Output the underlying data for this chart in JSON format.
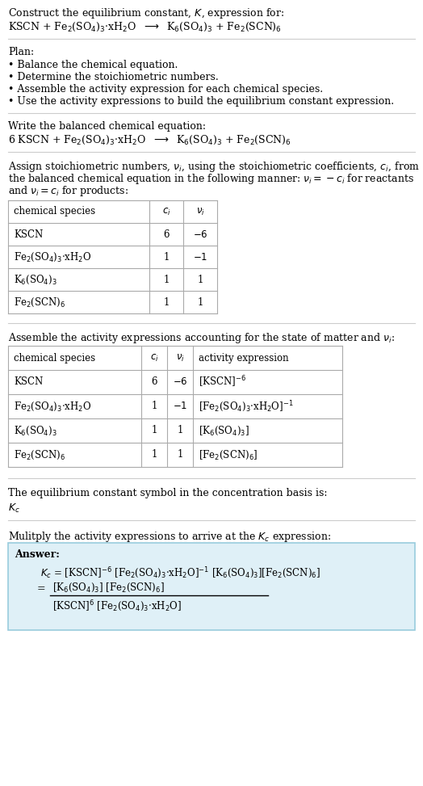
{
  "bg_color": "#ffffff",
  "text_color": "#000000",
  "table_border": "#aaaaaa",
  "answer_bg": "#dff0f7",
  "answer_border": "#99ccdd",
  "section1_title": "Construct the equilibrium constant, $K$, expression for:",
  "section1_eq": "KSCN + Fe$_2$(SO$_4$)$_3$·xH$_2$O  $\\longrightarrow$  K$_6$(SO$_4$)$_3$ + Fe$_2$(SCN)$_6$",
  "plan_title": "Plan:",
  "plan_bullets": [
    "• Balance the chemical equation.",
    "• Determine the stoichiometric numbers.",
    "• Assemble the activity expression for each chemical species.",
    "• Use the activity expressions to build the equilibrium constant expression."
  ],
  "balanced_title": "Write the balanced chemical equation:",
  "balanced_eq": "6 KSCN + Fe$_2$(SO$_4$)$_3$·xH$_2$O  $\\longrightarrow$  K$_6$(SO$_4$)$_3$ + Fe$_2$(SCN)$_6$",
  "stoich_intro_lines": [
    "Assign stoichiometric numbers, $\\nu_i$, using the stoichiometric coefficients, $c_i$, from",
    "the balanced chemical equation in the following manner: $\\nu_i = -c_i$ for reactants",
    "and $\\nu_i = c_i$ for products:"
  ],
  "table1_headers": [
    "chemical species",
    "$c_i$",
    "$\\nu_i$"
  ],
  "table1_rows": [
    [
      "KSCN",
      "6",
      "$-6$"
    ],
    [
      "Fe$_2$(SO$_4$)$_3$·xH$_2$O",
      "1",
      "$-1$"
    ],
    [
      "K$_6$(SO$_4$)$_3$",
      "1",
      "1"
    ],
    [
      "Fe$_2$(SCN)$_6$",
      "1",
      "1"
    ]
  ],
  "activity_intro": "Assemble the activity expressions accounting for the state of matter and $\\nu_i$:",
  "table2_headers": [
    "chemical species",
    "$c_i$",
    "$\\nu_i$",
    "activity expression"
  ],
  "table2_rows": [
    [
      "KSCN",
      "6",
      "$-6$",
      "[KSCN]$^{-6}$"
    ],
    [
      "Fe$_2$(SO$_4$)$_3$·xH$_2$O",
      "1",
      "$-1$",
      "[Fe$_2$(SO$_4$)$_3$·xH$_2$O]$^{-1}$"
    ],
    [
      "K$_6$(SO$_4$)$_3$",
      "1",
      "1",
      "[K$_6$(SO$_4$)$_3$]"
    ],
    [
      "Fe$_2$(SCN)$_6$",
      "1",
      "1",
      "[Fe$_2$(SCN)$_6$]"
    ]
  ],
  "kc_intro": "The equilibrium constant symbol in the concentration basis is:",
  "kc_symbol": "$K_c$",
  "multiply_intro": "Mulitply the activity expressions to arrive at the $K_c$ expression:",
  "answer_label": "Answer:",
  "answer_line1": "$K_c$ = [KSCN]$^{-6}$ [Fe$_2$(SO$_4$)$_3$·xH$_2$O]$^{-1}$ [K$_6$(SO$_4$)$_3$][Fe$_2$(SCN)$_6$]",
  "answer_eq_num": "[K$_6$(SO$_4$)$_3$] [Fe$_2$(SCN)$_6$]",
  "answer_eq_den": "[KSCN]$^6$ [Fe$_2$(SO$_4$)$_3$·xH$_2$O]",
  "fs": 9.0,
  "fs_small": 8.5
}
